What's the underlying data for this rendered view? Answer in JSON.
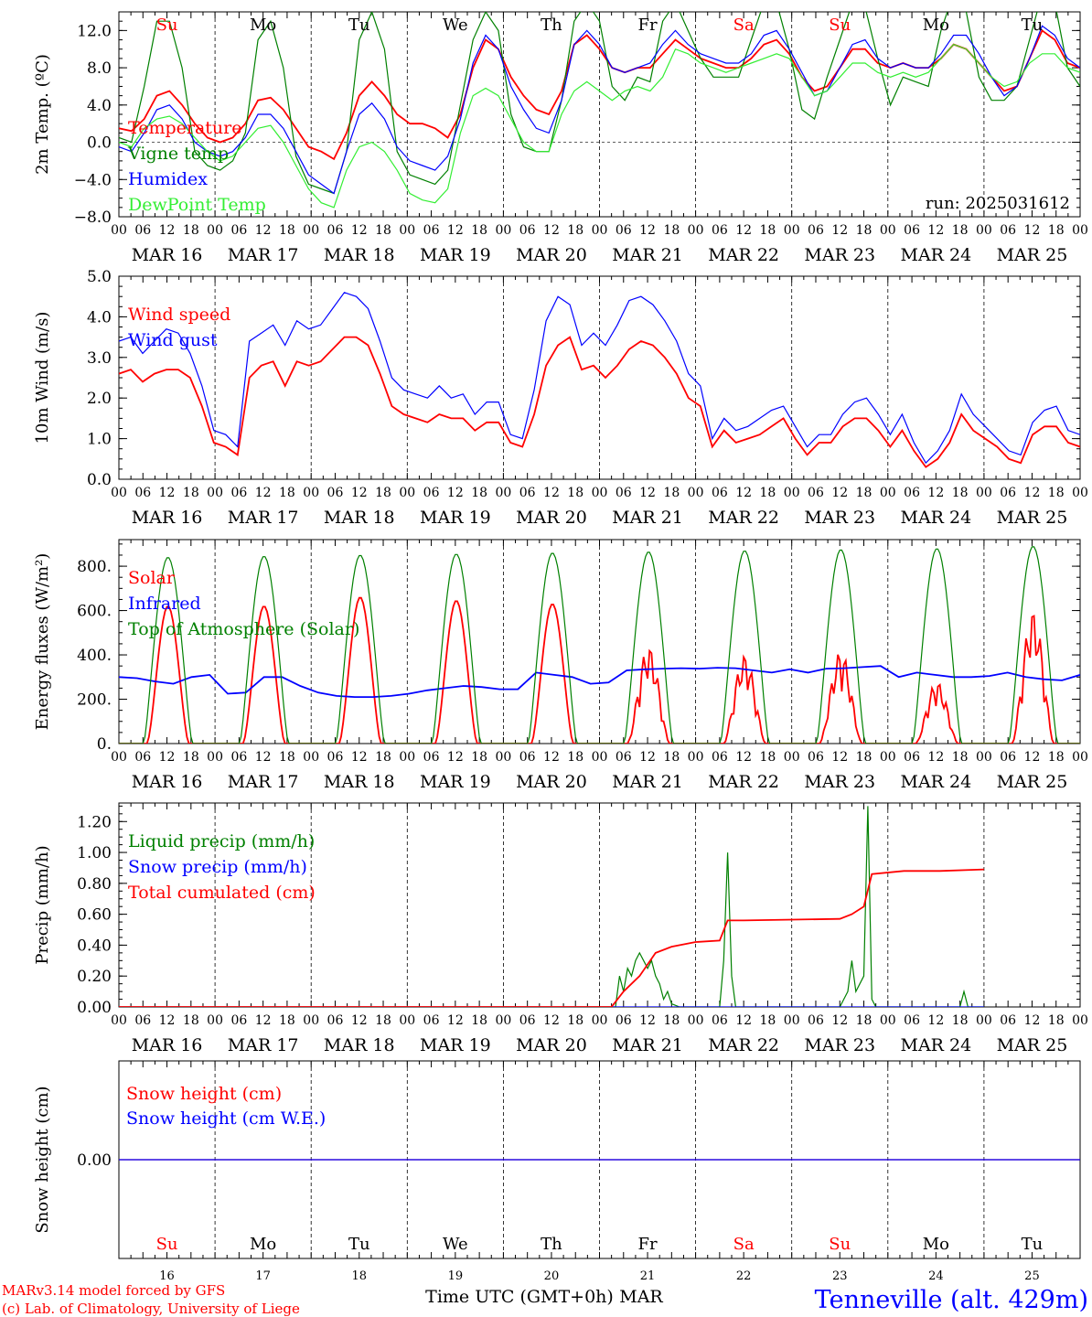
{
  "chart_data": {
    "type": "line",
    "run_label": "run: 2025031612",
    "hour_ticks": [
      "00",
      "06",
      "12",
      "18"
    ],
    "day_labels": [
      "MAR 16",
      "MAR 17",
      "MAR 18",
      "MAR 19",
      "MAR 20",
      "MAR 21",
      "MAR 22",
      "MAR 23",
      "MAR 24",
      "MAR 25"
    ],
    "weekdays": [
      {
        "label": "Su",
        "color": "#ff0000"
      },
      {
        "label": "Mo",
        "color": "#000000"
      },
      {
        "label": "Tu",
        "color": "#000000"
      },
      {
        "label": "We",
        "color": "#000000"
      },
      {
        "label": "Th",
        "color": "#000000"
      },
      {
        "label": "Fr",
        "color": "#000000"
      },
      {
        "label": "Sa",
        "color": "#ff0000"
      },
      {
        "label": "Su",
        "color": "#ff0000"
      },
      {
        "label": "Mo",
        "color": "#000000"
      },
      {
        "label": "Tu",
        "color": "#000000"
      }
    ],
    "day_numbers": [
      "16",
      "17",
      "18",
      "19",
      "20",
      "21",
      "22",
      "23",
      "24",
      "25"
    ],
    "xlabel": "Time UTC (GMT+0h)",
    "xlabel_month": "MAR",
    "footer": {
      "model": "MARv3.14 model forced by GFS",
      "credit": "(c) Lab. of Climatology, University of Liege",
      "station": "Tenneville (alt. 429m)"
    },
    "panels": [
      {
        "ylabel": "2m Temp. (ºC)",
        "ylim": [
          -8,
          14
        ],
        "ticks": [
          -8,
          -4,
          0,
          4,
          8,
          12
        ],
        "tick_labels": [
          "−8.0",
          "−4.0",
          "0.0",
          "4.0",
          "8.0",
          "12.0"
        ],
        "zero_line": true,
        "series": [
          {
            "name": "Temperature",
            "color": "#ff0000",
            "values": [
              1.5,
              1.2,
              2.5,
              5.0,
              5.5,
              4.0,
              2.0,
              0.5,
              0.0,
              0.5,
              2.0,
              4.5,
              4.8,
              3.5,
              1.5,
              -0.5,
              -1.0,
              -1.8,
              1.0,
              5.0,
              6.5,
              5.0,
              3.0,
              2.0,
              2.0,
              1.5,
              0.5,
              3.0,
              8.0,
              11.0,
              10.0,
              7.0,
              5.0,
              3.5,
              3.0,
              5.5,
              10.5,
              11.5,
              10.0,
              8.0,
              7.5,
              8.0,
              8.0,
              9.5,
              11.0,
              10.0,
              9.0,
              8.5,
              8.0,
              8.0,
              9.0,
              10.5,
              11.0,
              9.5,
              7.0,
              5.5,
              6.0,
              8.0,
              10.0,
              10.0,
              8.5,
              8.0,
              8.5,
              8.0,
              8.0,
              9.0,
              10.5,
              10.0,
              8.5,
              7.0,
              5.5,
              6.0,
              9.0,
              12.0,
              11.0,
              8.5,
              8.0
            ]
          },
          {
            "name": "Vigne temp",
            "color": "#008000",
            "values": [
              0.5,
              0.0,
              6.0,
              13.0,
              13.0,
              8.0,
              -1.0,
              -2.5,
              -3.0,
              -2.0,
              1.0,
              11.0,
              13.0,
              8.0,
              -1.5,
              -4.5,
              -5.0,
              -5.5,
              -1.0,
              11.0,
              14.0,
              10.0,
              -1.0,
              -3.5,
              -4.0,
              -4.5,
              -3.0,
              4.0,
              11.0,
              14.0,
              12.0,
              3.0,
              -0.5,
              -1.0,
              -1.0,
              4.5,
              13.0,
              15.0,
              13.0,
              6.0,
              4.5,
              7.0,
              6.5,
              13.0,
              15.0,
              12.0,
              9.0,
              7.0,
              7.0,
              7.0,
              11.0,
              15.0,
              15.0,
              10.0,
              3.5,
              2.5,
              7.0,
              11.0,
              15.0,
              14.5,
              9.0,
              4.0,
              7.0,
              6.5,
              6.0,
              12.0,
              16.0,
              14.0,
              7.0,
              4.5,
              4.5,
              6.0,
              11.0,
              16.0,
              15.0,
              8.0,
              6.0
            ]
          },
          {
            "name": "Humidex",
            "color": "#0000ff",
            "values": [
              -0.5,
              -1.0,
              1.0,
              3.5,
              4.0,
              2.5,
              0.0,
              -1.0,
              -1.5,
              -1.0,
              0.5,
              3.0,
              3.0,
              1.5,
              -1.0,
              -3.5,
              -4.5,
              -5.5,
              -1.0,
              3.0,
              4.2,
              2.5,
              -0.5,
              -2.0,
              -2.5,
              -3.0,
              -1.5,
              2.5,
              8.5,
              11.5,
              10.0,
              6.0,
              3.5,
              1.5,
              1.0,
              4.5,
              10.5,
              12.0,
              10.5,
              8.0,
              7.5,
              8.0,
              8.5,
              10.5,
              12.0,
              10.5,
              9.5,
              9.0,
              8.5,
              8.5,
              9.5,
              11.5,
              12.0,
              10.0,
              7.5,
              5.0,
              5.5,
              8.0,
              10.5,
              11.0,
              9.0,
              8.0,
              8.5,
              8.0,
              8.0,
              9.5,
              11.5,
              11.5,
              9.5,
              7.0,
              5.0,
              6.0,
              9.0,
              12.5,
              11.5,
              9.0,
              8.0
            ]
          },
          {
            "name": "DewPoint Temp",
            "color": "#33ee33",
            "values": [
              0.0,
              -0.5,
              1.5,
              2.5,
              2.8,
              2.0,
              0.5,
              -1.0,
              -2.0,
              -1.5,
              0.0,
              1.5,
              1.8,
              0.0,
              -2.5,
              -5.0,
              -6.5,
              -7.0,
              -3.0,
              -0.5,
              0.0,
              -1.0,
              -3.0,
              -5.5,
              -6.2,
              -6.5,
              -5.0,
              1.0,
              5.0,
              5.8,
              5.0,
              2.5,
              0.0,
              -1.0,
              -1.0,
              3.0,
              5.5,
              6.5,
              5.5,
              4.5,
              5.5,
              6.0,
              5.5,
              7.0,
              10.0,
              9.5,
              8.5,
              8.0,
              7.5,
              8.0,
              8.5,
              9.0,
              9.5,
              9.0,
              7.0,
              5.0,
              5.5,
              7.0,
              8.5,
              8.5,
              7.5,
              7.0,
              7.5,
              7.0,
              7.5,
              9.0,
              10.5,
              10.0,
              8.5,
              7.0,
              6.0,
              6.5,
              8.5,
              9.5,
              9.5,
              8.0,
              7.5
            ]
          }
        ]
      },
      {
        "ylabel": "10m Wind (m/s)",
        "ylim": [
          0,
          5
        ],
        "ticks": [
          0,
          1,
          2,
          3,
          4,
          5
        ],
        "tick_labels": [
          "0.0",
          "1.0",
          "2.0",
          "3.0",
          "4.0",
          "5.0"
        ],
        "series": [
          {
            "name": "Wind speed",
            "color": "#ff0000",
            "values": [
              2.6,
              2.7,
              2.4,
              2.6,
              2.7,
              2.7,
              2.5,
              1.8,
              0.9,
              0.8,
              0.6,
              2.5,
              2.8,
              2.9,
              2.3,
              2.9,
              2.8,
              2.9,
              3.2,
              3.5,
              3.5,
              3.3,
              2.6,
              1.8,
              1.6,
              1.5,
              1.4,
              1.6,
              1.5,
              1.5,
              1.2,
              1.4,
              1.4,
              0.9,
              0.8,
              1.6,
              2.8,
              3.3,
              3.5,
              2.7,
              2.8,
              2.5,
              2.8,
              3.2,
              3.4,
              3.3,
              3.0,
              2.6,
              2.0,
              1.8,
              0.8,
              1.2,
              0.9,
              1.0,
              1.1,
              1.3,
              1.5,
              1.0,
              0.6,
              0.9,
              0.9,
              1.3,
              1.5,
              1.5,
              1.2,
              0.8,
              1.2,
              0.7,
              0.3,
              0.5,
              0.9,
              1.6,
              1.2,
              1.0,
              0.8,
              0.5,
              0.4,
              1.1,
              1.3,
              1.3,
              0.9,
              0.8
            ]
          },
          {
            "name": "Wind gust",
            "color": "#0000ff",
            "values": [
              3.4,
              3.5,
              3.1,
              3.4,
              3.7,
              3.6,
              3.1,
              2.3,
              1.2,
              1.1,
              0.8,
              3.4,
              3.6,
              3.8,
              3.3,
              3.9,
              3.7,
              3.8,
              4.2,
              4.6,
              4.5,
              4.2,
              3.4,
              2.5,
              2.2,
              2.1,
              2.0,
              2.3,
              2.0,
              2.1,
              1.6,
              1.9,
              1.9,
              1.1,
              1.0,
              2.2,
              3.9,
              4.5,
              4.3,
              3.3,
              3.6,
              3.3,
              3.8,
              4.4,
              4.5,
              4.3,
              3.9,
              3.4,
              2.6,
              2.3,
              1.0,
              1.5,
              1.2,
              1.3,
              1.5,
              1.7,
              1.8,
              1.3,
              0.8,
              1.1,
              1.1,
              1.6,
              1.9,
              2.0,
              1.6,
              1.1,
              1.6,
              0.9,
              0.4,
              0.7,
              1.2,
              2.1,
              1.6,
              1.3,
              1.0,
              0.7,
              0.6,
              1.4,
              1.7,
              1.8,
              1.2,
              1.1
            ]
          }
        ]
      },
      {
        "ylabel": "Energy fluxes (W/m²)",
        "ylim": [
          0,
          920
        ],
        "ticks": [
          0,
          200,
          400,
          600,
          800
        ],
        "tick_labels": [
          "0.",
          "200.",
          "400.",
          "600.",
          "800."
        ],
        "series": [
          {
            "name": "Solar",
            "color": "#ff0000",
            "day_peaks": [
              620,
              620,
              660,
              645,
              630,
              440,
              400,
              420,
              280,
              600
            ]
          },
          {
            "name": "Infrared",
            "color": "#0000ff",
            "values": [
              300,
              295,
              280,
              270,
              300,
              310,
              225,
              230,
              300,
              300,
              260,
              230,
              215,
              210,
              210,
              215,
              225,
              240,
              250,
              260,
              255,
              245,
              245,
              320,
              310,
              300,
              270,
              275,
              330,
              335,
              338,
              340,
              338,
              342,
              340,
              330,
              320,
              335,
              320,
              338,
              340,
              345,
              350,
              300,
              320,
              310,
              300,
              300,
              305,
              320,
              300,
              290,
              285,
              310
            ]
          },
          {
            "name": "Top of Atmosphere (Solar)",
            "color": "#008000",
            "day_peaks": [
              840,
              845,
              850,
              855,
              860,
              865,
              870,
              875,
              880,
              890
            ]
          }
        ]
      },
      {
        "ylabel": "Precip (mm/h)",
        "ylim": [
          0,
          1.32
        ],
        "ticks": [
          0,
          0.2,
          0.4,
          0.6,
          0.8,
          1.0,
          1.2
        ],
        "tick_labels": [
          "0.00",
          "0.20",
          "0.40",
          "0.60",
          "0.80",
          "1.00",
          "1.20"
        ],
        "series": [
          {
            "name": "Liquid precip (mm/h)",
            "color": "#008000",
            "points": [
              [
                0,
                0
              ],
              [
                124,
                0
              ],
              [
                125,
                0.2
              ],
              [
                126,
                0.1
              ],
              [
                127,
                0.25
              ],
              [
                128,
                0.2
              ],
              [
                129,
                0.3
              ],
              [
                130,
                0.35
              ],
              [
                131,
                0.3
              ],
              [
                132,
                0.25
              ],
              [
                133,
                0.3
              ],
              [
                134,
                0.2
              ],
              [
                135,
                0.15
              ],
              [
                136,
                0.05
              ],
              [
                137,
                0.1
              ],
              [
                138,
                0.02
              ],
              [
                140,
                0
              ],
              [
                150,
                0
              ],
              [
                151,
                0.3
              ],
              [
                152,
                1.0
              ],
              [
                153,
                0.2
              ],
              [
                154,
                0
              ],
              [
                180,
                0
              ],
              [
                182,
                0.1
              ],
              [
                183,
                0.3
              ],
              [
                184,
                0.1
              ],
              [
                186,
                0.2
              ],
              [
                187,
                1.3
              ],
              [
                188,
                0.05
              ],
              [
                189,
                0
              ],
              [
                210,
                0
              ],
              [
                211,
                0.1
              ],
              [
                212,
                0
              ],
              [
                216,
                0
              ]
            ]
          },
          {
            "name": "Snow precip (mm/h)",
            "color": "#0000ff",
            "points": [
              [
                0,
                0
              ],
              [
                216,
                0
              ]
            ]
          },
          {
            "name": "Total cumulated (cm)",
            "color": "#ff0000",
            "points": [
              [
                0,
                0
              ],
              [
                123,
                0
              ],
              [
                126,
                0.1
              ],
              [
                130,
                0.2
              ],
              [
                134,
                0.35
              ],
              [
                138,
                0.39
              ],
              [
                144,
                0.42
              ],
              [
                150,
                0.43
              ],
              [
                152,
                0.56
              ],
              [
                156,
                0.56
              ],
              [
                180,
                0.57
              ],
              [
                183,
                0.6
              ],
              [
                186,
                0.65
              ],
              [
                188,
                0.86
              ],
              [
                196,
                0.88
              ],
              [
                205,
                0.88
              ],
              [
                216,
                0.89
              ]
            ]
          }
        ]
      },
      {
        "ylabel": "Snow height (cm)",
        "ylim": [
          -1,
          1
        ],
        "ticks": [
          0
        ],
        "tick_labels": [
          "0.00"
        ],
        "series": [
          {
            "name": "Snow height (cm)",
            "color": "#ff0000",
            "values": [
              0,
              0
            ]
          },
          {
            "name": "Snow height (cm W.E.)",
            "color": "#0000ff",
            "values": [
              0,
              0
            ]
          }
        ]
      }
    ]
  }
}
